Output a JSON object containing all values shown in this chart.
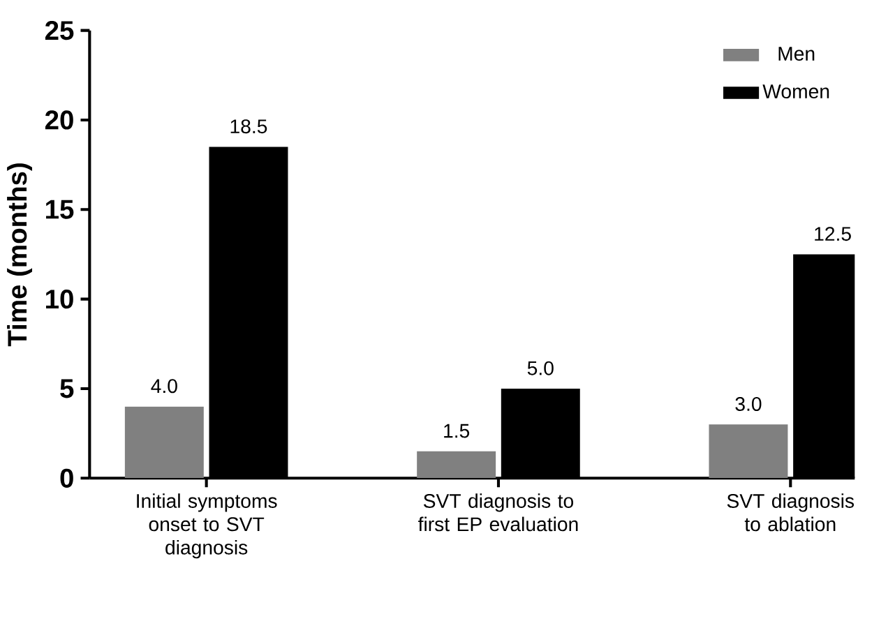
{
  "chart_data": {
    "type": "bar",
    "ylabel": "Time (months)",
    "categories": [
      "Initial symptoms onset to SVT diagnosis",
      "SVT diagnosis to first EP evaluation",
      "SVT diagnosis to ablation"
    ],
    "series": [
      {
        "name": "Men",
        "color": "#808080",
        "values": [
          4.0,
          1.5,
          3.0
        ],
        "value_labels": [
          "4.0",
          "1.5",
          "3.0"
        ]
      },
      {
        "name": "Women",
        "color": "#000000",
        "values": [
          18.5,
          5.0,
          12.5
        ],
        "value_labels": [
          "18.5",
          "5.0",
          "12.5"
        ]
      }
    ],
    "ylim": [
      0,
      25
    ],
    "yticks": [
      0,
      5,
      10,
      15,
      20,
      25
    ],
    "legend": "top right",
    "grid": false
  }
}
